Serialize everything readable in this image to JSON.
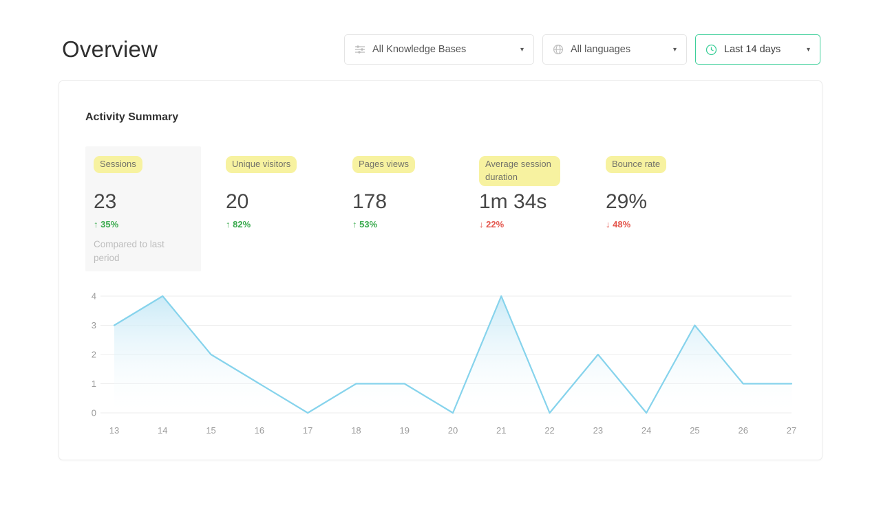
{
  "page": {
    "title": "Overview"
  },
  "filters": {
    "knowledge_bases": {
      "label": "All Knowledge Bases",
      "icon": "sliders-icon"
    },
    "languages": {
      "label": "All languages",
      "icon": "globe-icon"
    },
    "date_range": {
      "label": "Last 14 days",
      "icon": "clock-icon"
    }
  },
  "icons": {
    "caret": "▾"
  },
  "card": {
    "title": "Activity Summary"
  },
  "stats": [
    {
      "label": "Sessions",
      "value": "23",
      "arrow": "↑",
      "change": "35%",
      "direction": "up",
      "note": "Compared to last period"
    },
    {
      "label": "Unique visitors",
      "value": "20",
      "arrow": "↑",
      "change": "82%",
      "direction": "up"
    },
    {
      "label": "Pages views",
      "value": "178",
      "arrow": "↑",
      "change": "53%",
      "direction": "up"
    },
    {
      "label": "Average session duration",
      "value": "1m 34s",
      "arrow": "↓",
      "change": "22%",
      "direction": "down"
    },
    {
      "label": "Bounce rate",
      "value": "29%",
      "arrow": "↓",
      "change": "48%",
      "direction": "down"
    }
  ],
  "colors": {
    "accent-green": "#3ecf9a",
    "highlight-yellow": "#f7f2a0",
    "positive": "#3aaa4e",
    "negative": "#e4574e",
    "chart-line": "#86d3ec",
    "chart-area-top": "#c5e8f6"
  },
  "chart_data": {
    "type": "area",
    "x": [
      13,
      14,
      15,
      16,
      17,
      18,
      19,
      20,
      21,
      22,
      23,
      24,
      25,
      26,
      27
    ],
    "values": [
      3,
      4,
      2,
      1,
      0,
      1,
      1,
      0,
      4,
      0,
      2,
      0,
      3,
      1,
      1
    ],
    "title": "",
    "xlabel": "",
    "ylabel": "",
    "ylim": [
      0,
      4
    ],
    "yticks": [
      0,
      1,
      2,
      3,
      4
    ],
    "grid": true,
    "legend": false
  }
}
